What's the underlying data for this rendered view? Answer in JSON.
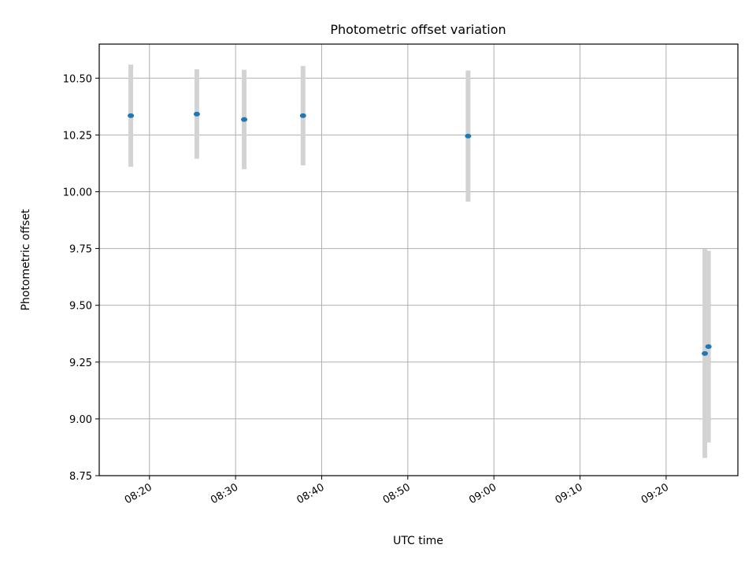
{
  "chart_data": {
    "type": "scatter",
    "title": "Photometric offset variation",
    "xlabel": "UTC time",
    "ylabel": "Photometric offset",
    "ylim": [
      8.75,
      10.65
    ],
    "xlim": [
      "08:14:10",
      "09:28:20"
    ],
    "grid": true,
    "x_tick_labels": [
      "08:20",
      "08:30",
      "08:40",
      "08:50",
      "09:00",
      "09:10",
      "09:20"
    ],
    "y_tick_labels": [
      "8.75",
      "9.00",
      "9.25",
      "9.50",
      "9.75",
      "10.00",
      "10.25",
      "10.50"
    ],
    "colors": {
      "point": "#1f77b4",
      "errorbar": "#d3d3d3"
    },
    "points": [
      {
        "time": "08:17:50",
        "value": 10.335,
        "error": 0.225
      },
      {
        "time": "08:25:30",
        "value": 10.342,
        "error": 0.197
      },
      {
        "time": "08:31:00",
        "value": 10.318,
        "error": 0.219
      },
      {
        "time": "08:37:50",
        "value": 10.335,
        "error": 0.219
      },
      {
        "time": "08:57:00",
        "value": 10.245,
        "error": 0.289
      },
      {
        "time": "09:24:30",
        "value": 9.288,
        "error": 0.46
      },
      {
        "time": "09:24:55",
        "value": 9.318,
        "error": 0.422
      }
    ]
  }
}
